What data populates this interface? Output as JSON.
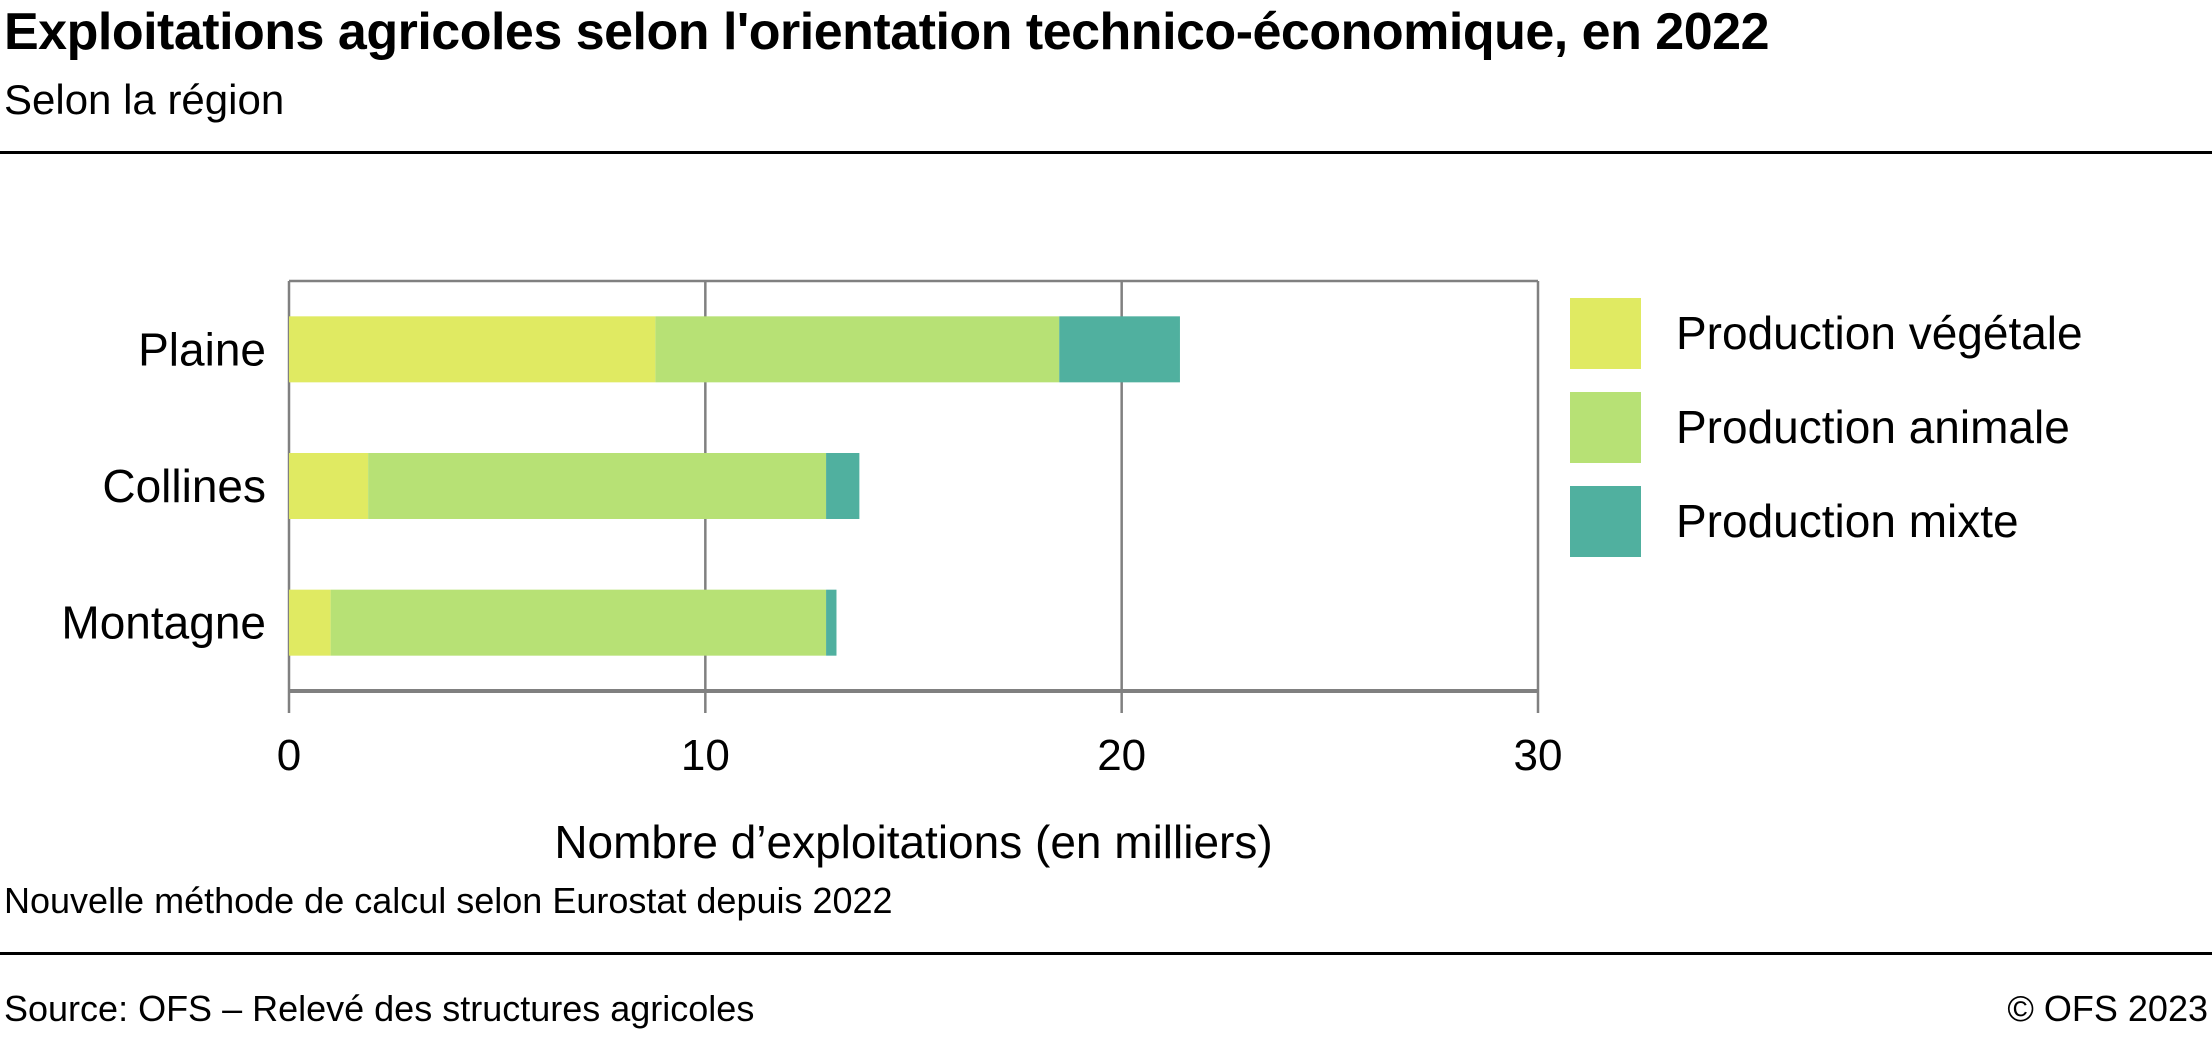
{
  "header": {
    "title": "Exploitations agricoles selon l'orientation technico-économique, en 2022",
    "subtitle": "Selon la région"
  },
  "footer": {
    "note": "Nouvelle méthode de calcul selon Eurostat depuis 2022",
    "source": "Source: OFS – Relevé des structures agricoles",
    "copyright": "© OFS 2023"
  },
  "chart_data": {
    "type": "bar",
    "orientation": "horizontal",
    "stacked": true,
    "title": "Exploitations agricoles selon l'orientation technico-économique, en 2022",
    "subtitle": "Selon la région",
    "categories": [
      "Plaine",
      "Collines",
      "Montagne"
    ],
    "series": [
      {
        "name": "Production végétale",
        "color": "#e0ea62",
        "values": [
          8.8,
          1.9,
          1.0
        ]
      },
      {
        "name": "Production animale",
        "color": "#b7e175",
        "values": [
          9.7,
          11.0,
          11.9
        ]
      },
      {
        "name": "Production mixte",
        "color": "#50b09f",
        "values": [
          2.9,
          0.8,
          0.25
        ]
      }
    ],
    "xlabel": "Nombre d’exploitations (en milliers)",
    "ylabel": "",
    "xlim": [
      0,
      30
    ],
    "xticks": [
      "0",
      "10",
      "20",
      "30"
    ],
    "grid": true,
    "legend": "right"
  }
}
